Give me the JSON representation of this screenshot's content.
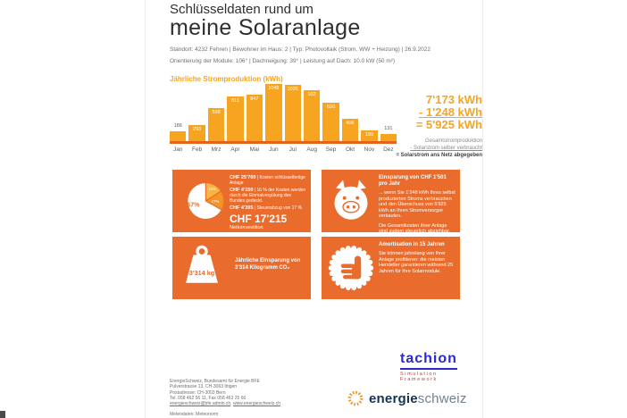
{
  "page": {
    "title_line1": "Schlüsseldaten rund um",
    "title_line2": "meine Solaranlage",
    "meta_line1": "Standort: 4232 Fehren | Bewohner im Haus: 2 | Typ: Photovoltaik (Strom, WW + Heizung) | 26.9.2022",
    "meta_line2": "Orientierung der Module: 106° | Dachneigung: 39° | Leistung auf Dach: 10.0 kW (50 m²)"
  },
  "chart_data": {
    "type": "bar",
    "title": "Jährliche Stromproduktion (kWh)",
    "categories": [
      "Jan",
      "Feb",
      "Mrz",
      "Apr",
      "Mai",
      "Jun",
      "Jul",
      "Aug",
      "Sep",
      "Okt",
      "Nov",
      "Dez"
    ],
    "values": [
      186,
      293,
      598,
      811,
      847,
      1048,
      1026,
      932,
      696,
      406,
      199,
      131
    ],
    "ylim": [
      0,
      1048
    ],
    "xlabel": "",
    "ylabel": "kWh",
    "grid": false,
    "legend_position": "none",
    "outside_label_indices": [
      0,
      11
    ],
    "annotation_total": "7'173 kWh"
  },
  "summary": {
    "total": "7'173 kWh",
    "self_used": "- 1'248 kWh",
    "to_grid": "= 5'925 kWh",
    "legend_total": "Gesamtstromproduktion",
    "legend_self": "- Solarstrom selber verbraucht",
    "legend_grid": "= Solarstrom ans Netz abgegeben"
  },
  "cards": {
    "investment": {
      "pie": {
        "labels": [
          "67%",
          "16%",
          "17%"
        ],
        "values": [
          67,
          16,
          17
        ]
      },
      "line1_amount": "CHF 25'760",
      "line1_text": "| Kosten schlüsselfertige Anlage",
      "line2_amount": "CHF 4'150",
      "line2_text": "| 16 % der Kosten werden durch die Einmalvergütung des Bundes gedeckt.",
      "line3_amount": "CHF 4'395",
      "line3_text": "| Steuerabzug von 17 %",
      "net_amount": "CHF 17'215",
      "net_label": "Nettoinvestition"
    },
    "savings": {
      "title": "Einsparung von CHF 1'501 pro Jahr",
      "body1": "... wenn Sie 1'248 kWh Ihres selbst produzierten Stroms verbrauchen und den Überschuss von 5'925 kWh an Ihren Stromversorger verkaufen.",
      "body2": "Die Gesamtkosten Ihrer Anlage sind zudem steuerlich abziehbar."
    },
    "co2": {
      "weight_label": "3'314 kg",
      "text": "Jährliche Einsparung von 3'314 Kilogramm CO₂"
    },
    "amortisation": {
      "title": "Amortisation in 15 Jahren",
      "body": "Sie können jahrelang von Ihrer Anlage profitieren: die meisten Hersteller garantieren während 25 Jahren für Ihre Solarmodule."
    }
  },
  "footer": {
    "tachion_name": "tachion",
    "tachion_sub": "Simulation Framework",
    "address_lines": [
      "EnergieSchweiz, Bundesamt für Energie BFE",
      "Pulverstrasse 13, CH-3063 Ittigen",
      "Postadresse: CH-3003 Bern",
      "Tel. 058 462 56 11, Fax 058 463 25 60"
    ],
    "link_email": "energieschweiz@bfe.admin.ch",
    "link_separator": ", ",
    "link_web": "www.energieschweiz.ch",
    "meteo": "Meteodaten: Meteonorm",
    "energie_logo_bold": "energie",
    "energie_logo_light": "schweiz"
  },
  "colors": {
    "card_orange": "#EA6C2D",
    "bar_amber": "#F7A521",
    "baseline_orange": "#E8611A",
    "pie_light": "#F9B43B",
    "pie_mid": "#F59323",
    "tachion_blue": "#2A2AD0",
    "tachion_red": "#C03A2B",
    "energie_navy": "#16324F",
    "sunburst_orange": "#F0962C"
  }
}
